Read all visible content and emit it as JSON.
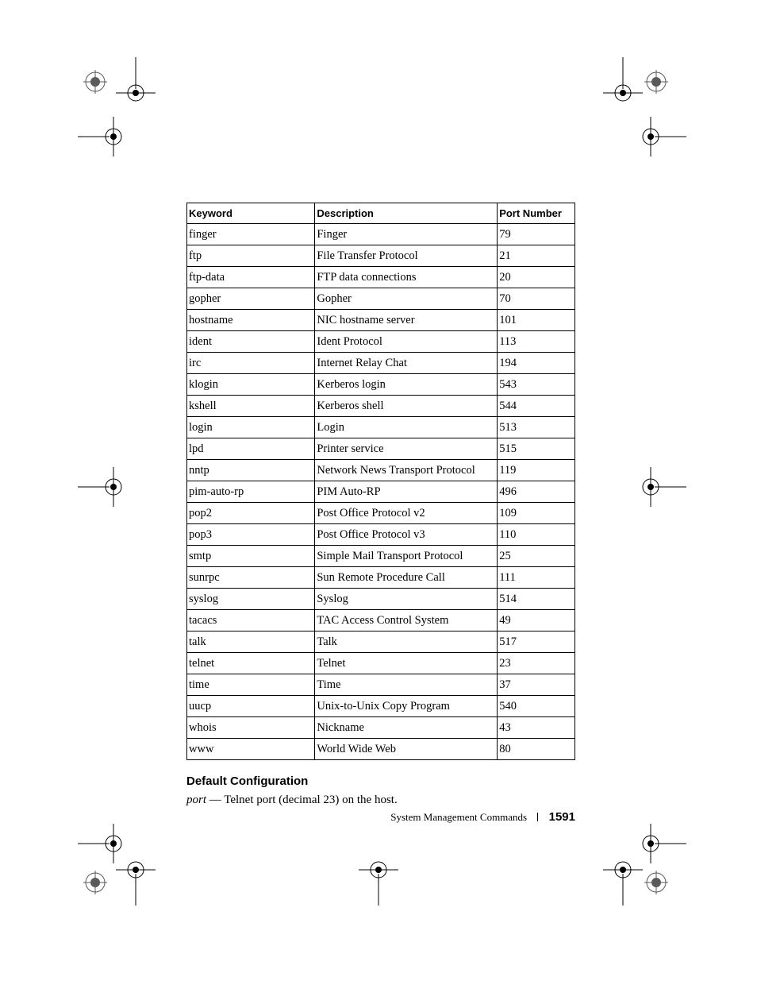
{
  "table": {
    "columns": [
      "Keyword",
      "Description",
      "Port Number"
    ],
    "column_widths_pct": [
      33,
      47,
      20
    ],
    "border_color": "#000000",
    "header_font": {
      "family": "Arial",
      "weight": "bold",
      "size_pt": 10
    },
    "cell_font": {
      "family": "Georgia",
      "weight": "normal",
      "size_pt": 11
    },
    "rows": [
      [
        "finger",
        "Finger",
        "79"
      ],
      [
        "ftp",
        "File Transfer Protocol",
        "21"
      ],
      [
        "ftp-data",
        "FTP data connections",
        "20"
      ],
      [
        "gopher",
        "Gopher",
        "70"
      ],
      [
        "hostname",
        "NIC hostname server",
        "101"
      ],
      [
        "ident",
        "Ident Protocol",
        "113"
      ],
      [
        "irc",
        "Internet Relay Chat",
        "194"
      ],
      [
        "klogin",
        "Kerberos login",
        "543"
      ],
      [
        "kshell",
        "Kerberos shell",
        "544"
      ],
      [
        "login",
        "Login",
        "513"
      ],
      [
        "lpd",
        "Printer service",
        "515"
      ],
      [
        "nntp",
        "Network News Transport Protocol",
        "119"
      ],
      [
        "pim-auto-rp",
        "PIM Auto-RP",
        "496"
      ],
      [
        "pop2",
        "Post Office Protocol v2",
        "109"
      ],
      [
        "pop3",
        "Post Office Protocol v3",
        "110"
      ],
      [
        "smtp",
        "Simple Mail Transport Protocol",
        "25"
      ],
      [
        "sunrpc",
        "Sun Remote Procedure Call",
        "111"
      ],
      [
        "syslog",
        "Syslog",
        "514"
      ],
      [
        "tacacs",
        "TAC Access Control System",
        "49"
      ],
      [
        "talk",
        "Talk",
        "517"
      ],
      [
        "telnet",
        "Telnet",
        "23"
      ],
      [
        "time",
        "Time",
        "37"
      ],
      [
        "uucp",
        "Unix-to-Unix Copy Program",
        "540"
      ],
      [
        "whois",
        "Nickname",
        "43"
      ],
      [
        "www",
        "World Wide Web",
        "80"
      ]
    ]
  },
  "section": {
    "heading": "Default Configuration",
    "body_italic": "port",
    "body_rest": " — Telnet port (decimal 23) on the host."
  },
  "footer": {
    "label": "System Management Commands",
    "page_number": "1591"
  },
  "colors": {
    "text": "#000000",
    "background": "#ffffff",
    "rule": "#000000"
  }
}
